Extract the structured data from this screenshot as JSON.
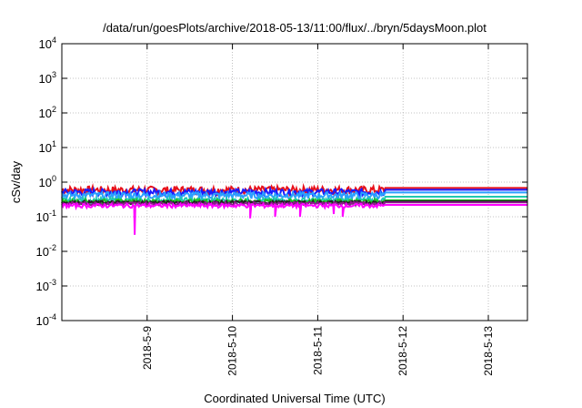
{
  "chart_data": {
    "type": "line",
    "title": "/data/run/goesPlots/archive/2018-05-13/11:00/flux/../bryn/5daysMoon.plot",
    "xlabel": "Coordinated Universal Time (UTC)",
    "ylabel": "cSv/day",
    "yscale": "log",
    "ylim": [
      0.0001,
      10000
    ],
    "y_ticks": [
      {
        "value": 0.0001,
        "base": "10",
        "exp": "-4"
      },
      {
        "value": 0.001,
        "base": "10",
        "exp": "-3"
      },
      {
        "value": 0.01,
        "base": "10",
        "exp": "-2"
      },
      {
        "value": 0.1,
        "base": "10",
        "exp": "-1"
      },
      {
        "value": 1,
        "base": "10",
        "exp": "0"
      },
      {
        "value": 10,
        "base": "10",
        "exp": "1"
      },
      {
        "value": 100,
        "base": "10",
        "exp": "2"
      },
      {
        "value": 1000,
        "base": "10",
        "exp": "3"
      },
      {
        "value": 10000,
        "base": "10",
        "exp": "4"
      }
    ],
    "xlim": [
      "2018-05-08T00:00",
      "2018-05-13T11:00"
    ],
    "x_ticks": [
      {
        "value": "2018-05-09T00:00",
        "label": "2018-5-9"
      },
      {
        "value": "2018-05-10T00:00",
        "label": "2018-5-10"
      },
      {
        "value": "2018-05-11T00:00",
        "label": "2018-5-11"
      },
      {
        "value": "2018-05-12T00:00",
        "label": "2018-5-12"
      },
      {
        "value": "2018-05-13T00:00",
        "label": "2018-5-13"
      }
    ],
    "grid": true,
    "legend": "none",
    "series": [
      {
        "color": "#e8101a",
        "level": 0.6,
        "flat": 0.68,
        "amp": 0.12,
        "dips": []
      },
      {
        "color": "#1a1aff",
        "level": 0.52,
        "flat": 0.6,
        "amp": 0.1,
        "dips": []
      },
      {
        "color": "#2aa0ff",
        "level": 0.42,
        "flat": 0.5,
        "amp": 0.1,
        "dips": []
      },
      {
        "color": "#20c8b0",
        "level": 0.3,
        "flat": 0.38,
        "amp": 0.08,
        "dips": []
      },
      {
        "color": "#20c020",
        "level": 0.28,
        "flat": 0.3,
        "amp": 0.06,
        "dips": []
      },
      {
        "color": "#222222",
        "level": 0.26,
        "flat": 0.28,
        "amp": 0.05,
        "dips": []
      },
      {
        "color": "#8a1a8a",
        "level": 0.24,
        "flat": 0.26,
        "amp": 0.05,
        "dips": []
      },
      {
        "color": "#ff00ff",
        "level": 0.21,
        "flat": 0.22,
        "amp": 0.06,
        "dips": [
          [
            "2018-05-08T20:30",
            0.03
          ],
          [
            "2018-05-10T05:00",
            0.09
          ],
          [
            "2018-05-10T12:00",
            0.1
          ],
          [
            "2018-05-10T19:00",
            0.1
          ],
          [
            "2018-05-11T04:30",
            0.12
          ],
          [
            "2018-05-11T07:00",
            0.1
          ]
        ]
      }
    ],
    "flat_from": "2018-05-11T19:00"
  }
}
